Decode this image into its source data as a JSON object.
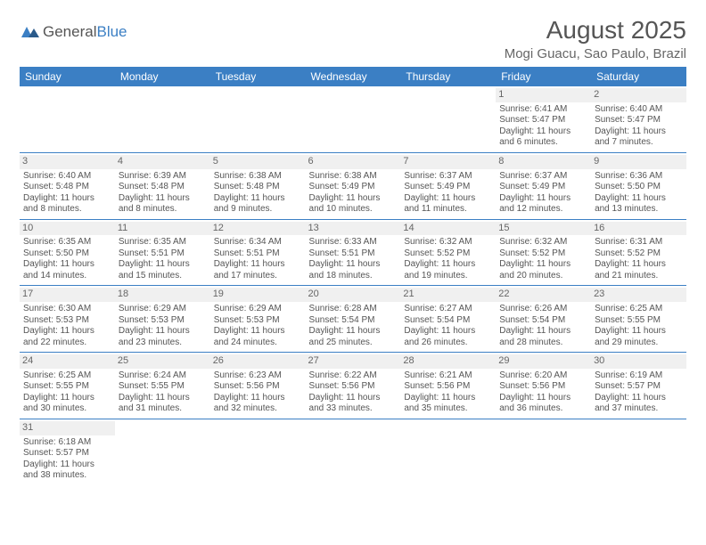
{
  "logo": {
    "text1": "General",
    "text2": "Blue"
  },
  "title": "August 2025",
  "location": "Mogi Guacu, Sao Paulo, Brazil",
  "colors": {
    "header_bg": "#3b7fc4",
    "header_text": "#ffffff",
    "daynum_bg": "#f0f0f0",
    "text": "#555555",
    "row_border": "#3b7fc4"
  },
  "weekdays": [
    "Sunday",
    "Monday",
    "Tuesday",
    "Wednesday",
    "Thursday",
    "Friday",
    "Saturday"
  ],
  "weeks": [
    [
      null,
      null,
      null,
      null,
      null,
      {
        "n": "1",
        "sr": "Sunrise: 6:41 AM",
        "ss": "Sunset: 5:47 PM",
        "dl": "Daylight: 11 hours and 6 minutes."
      },
      {
        "n": "2",
        "sr": "Sunrise: 6:40 AM",
        "ss": "Sunset: 5:47 PM",
        "dl": "Daylight: 11 hours and 7 minutes."
      }
    ],
    [
      {
        "n": "3",
        "sr": "Sunrise: 6:40 AM",
        "ss": "Sunset: 5:48 PM",
        "dl": "Daylight: 11 hours and 8 minutes."
      },
      {
        "n": "4",
        "sr": "Sunrise: 6:39 AM",
        "ss": "Sunset: 5:48 PM",
        "dl": "Daylight: 11 hours and 8 minutes."
      },
      {
        "n": "5",
        "sr": "Sunrise: 6:38 AM",
        "ss": "Sunset: 5:48 PM",
        "dl": "Daylight: 11 hours and 9 minutes."
      },
      {
        "n": "6",
        "sr": "Sunrise: 6:38 AM",
        "ss": "Sunset: 5:49 PM",
        "dl": "Daylight: 11 hours and 10 minutes."
      },
      {
        "n": "7",
        "sr": "Sunrise: 6:37 AM",
        "ss": "Sunset: 5:49 PM",
        "dl": "Daylight: 11 hours and 11 minutes."
      },
      {
        "n": "8",
        "sr": "Sunrise: 6:37 AM",
        "ss": "Sunset: 5:49 PM",
        "dl": "Daylight: 11 hours and 12 minutes."
      },
      {
        "n": "9",
        "sr": "Sunrise: 6:36 AM",
        "ss": "Sunset: 5:50 PM",
        "dl": "Daylight: 11 hours and 13 minutes."
      }
    ],
    [
      {
        "n": "10",
        "sr": "Sunrise: 6:35 AM",
        "ss": "Sunset: 5:50 PM",
        "dl": "Daylight: 11 hours and 14 minutes."
      },
      {
        "n": "11",
        "sr": "Sunrise: 6:35 AM",
        "ss": "Sunset: 5:51 PM",
        "dl": "Daylight: 11 hours and 15 minutes."
      },
      {
        "n": "12",
        "sr": "Sunrise: 6:34 AM",
        "ss": "Sunset: 5:51 PM",
        "dl": "Daylight: 11 hours and 17 minutes."
      },
      {
        "n": "13",
        "sr": "Sunrise: 6:33 AM",
        "ss": "Sunset: 5:51 PM",
        "dl": "Daylight: 11 hours and 18 minutes."
      },
      {
        "n": "14",
        "sr": "Sunrise: 6:32 AM",
        "ss": "Sunset: 5:52 PM",
        "dl": "Daylight: 11 hours and 19 minutes."
      },
      {
        "n": "15",
        "sr": "Sunrise: 6:32 AM",
        "ss": "Sunset: 5:52 PM",
        "dl": "Daylight: 11 hours and 20 minutes."
      },
      {
        "n": "16",
        "sr": "Sunrise: 6:31 AM",
        "ss": "Sunset: 5:52 PM",
        "dl": "Daylight: 11 hours and 21 minutes."
      }
    ],
    [
      {
        "n": "17",
        "sr": "Sunrise: 6:30 AM",
        "ss": "Sunset: 5:53 PM",
        "dl": "Daylight: 11 hours and 22 minutes."
      },
      {
        "n": "18",
        "sr": "Sunrise: 6:29 AM",
        "ss": "Sunset: 5:53 PM",
        "dl": "Daylight: 11 hours and 23 minutes."
      },
      {
        "n": "19",
        "sr": "Sunrise: 6:29 AM",
        "ss": "Sunset: 5:53 PM",
        "dl": "Daylight: 11 hours and 24 minutes."
      },
      {
        "n": "20",
        "sr": "Sunrise: 6:28 AM",
        "ss": "Sunset: 5:54 PM",
        "dl": "Daylight: 11 hours and 25 minutes."
      },
      {
        "n": "21",
        "sr": "Sunrise: 6:27 AM",
        "ss": "Sunset: 5:54 PM",
        "dl": "Daylight: 11 hours and 26 minutes."
      },
      {
        "n": "22",
        "sr": "Sunrise: 6:26 AM",
        "ss": "Sunset: 5:54 PM",
        "dl": "Daylight: 11 hours and 28 minutes."
      },
      {
        "n": "23",
        "sr": "Sunrise: 6:25 AM",
        "ss": "Sunset: 5:55 PM",
        "dl": "Daylight: 11 hours and 29 minutes."
      }
    ],
    [
      {
        "n": "24",
        "sr": "Sunrise: 6:25 AM",
        "ss": "Sunset: 5:55 PM",
        "dl": "Daylight: 11 hours and 30 minutes."
      },
      {
        "n": "25",
        "sr": "Sunrise: 6:24 AM",
        "ss": "Sunset: 5:55 PM",
        "dl": "Daylight: 11 hours and 31 minutes."
      },
      {
        "n": "26",
        "sr": "Sunrise: 6:23 AM",
        "ss": "Sunset: 5:56 PM",
        "dl": "Daylight: 11 hours and 32 minutes."
      },
      {
        "n": "27",
        "sr": "Sunrise: 6:22 AM",
        "ss": "Sunset: 5:56 PM",
        "dl": "Daylight: 11 hours and 33 minutes."
      },
      {
        "n": "28",
        "sr": "Sunrise: 6:21 AM",
        "ss": "Sunset: 5:56 PM",
        "dl": "Daylight: 11 hours and 35 minutes."
      },
      {
        "n": "29",
        "sr": "Sunrise: 6:20 AM",
        "ss": "Sunset: 5:56 PM",
        "dl": "Daylight: 11 hours and 36 minutes."
      },
      {
        "n": "30",
        "sr": "Sunrise: 6:19 AM",
        "ss": "Sunset: 5:57 PM",
        "dl": "Daylight: 11 hours and 37 minutes."
      }
    ],
    [
      {
        "n": "31",
        "sr": "Sunrise: 6:18 AM",
        "ss": "Sunset: 5:57 PM",
        "dl": "Daylight: 11 hours and 38 minutes."
      },
      null,
      null,
      null,
      null,
      null,
      null
    ]
  ]
}
